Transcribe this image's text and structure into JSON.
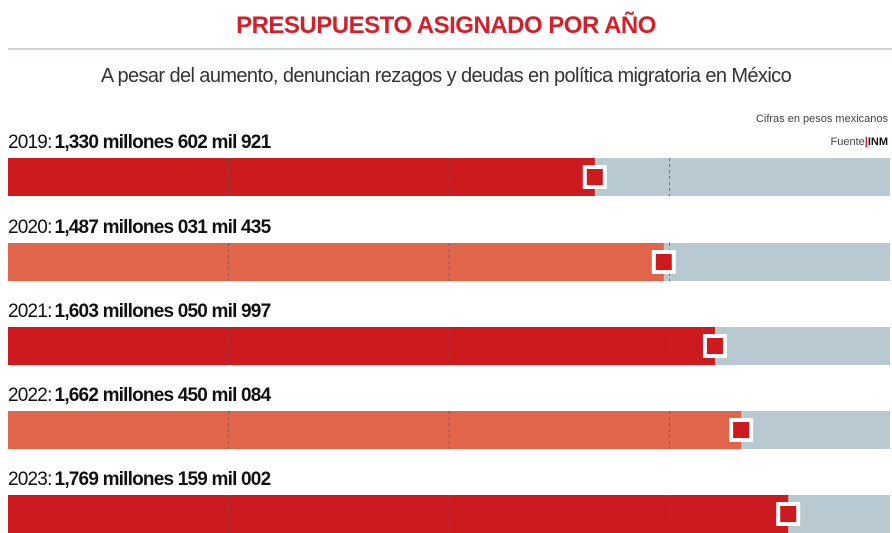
{
  "chart_data": {
    "type": "bar",
    "orientation": "horizontal",
    "title": "PRESUPUESTO ASIGNADO POR AÑO",
    "subtitle": "A pesar del aumento, denuncian rezagos y deudas en política migratoria en México",
    "note": "Cifras en pesos mexicanos",
    "source_label": "Fuente",
    "source": "INM",
    "categories": [
      "2019:",
      "2020:",
      "2021:",
      "2022:",
      "2023:"
    ],
    "values": [
      1330602921,
      1487031435,
      1603050997,
      1662450084,
      1769159002
    ],
    "value_labels": [
      "1,330 millones 602 mil 921",
      "1,487 millones 031 mil 435",
      "1,603 millones 050 mil 997",
      "1,662 millones 450 mil 084",
      "1,769 millones 159 mil 002"
    ],
    "colors": [
      "#cc1a1f",
      "#e0654a",
      "#cc1a1f",
      "#e0654a",
      "#cc1a1f"
    ],
    "track_color": "#b9c9d1",
    "xlim": [
      0,
      2000000000
    ],
    "xticks": [
      500000000,
      1000000000,
      1500000000
    ],
    "grid": true
  }
}
